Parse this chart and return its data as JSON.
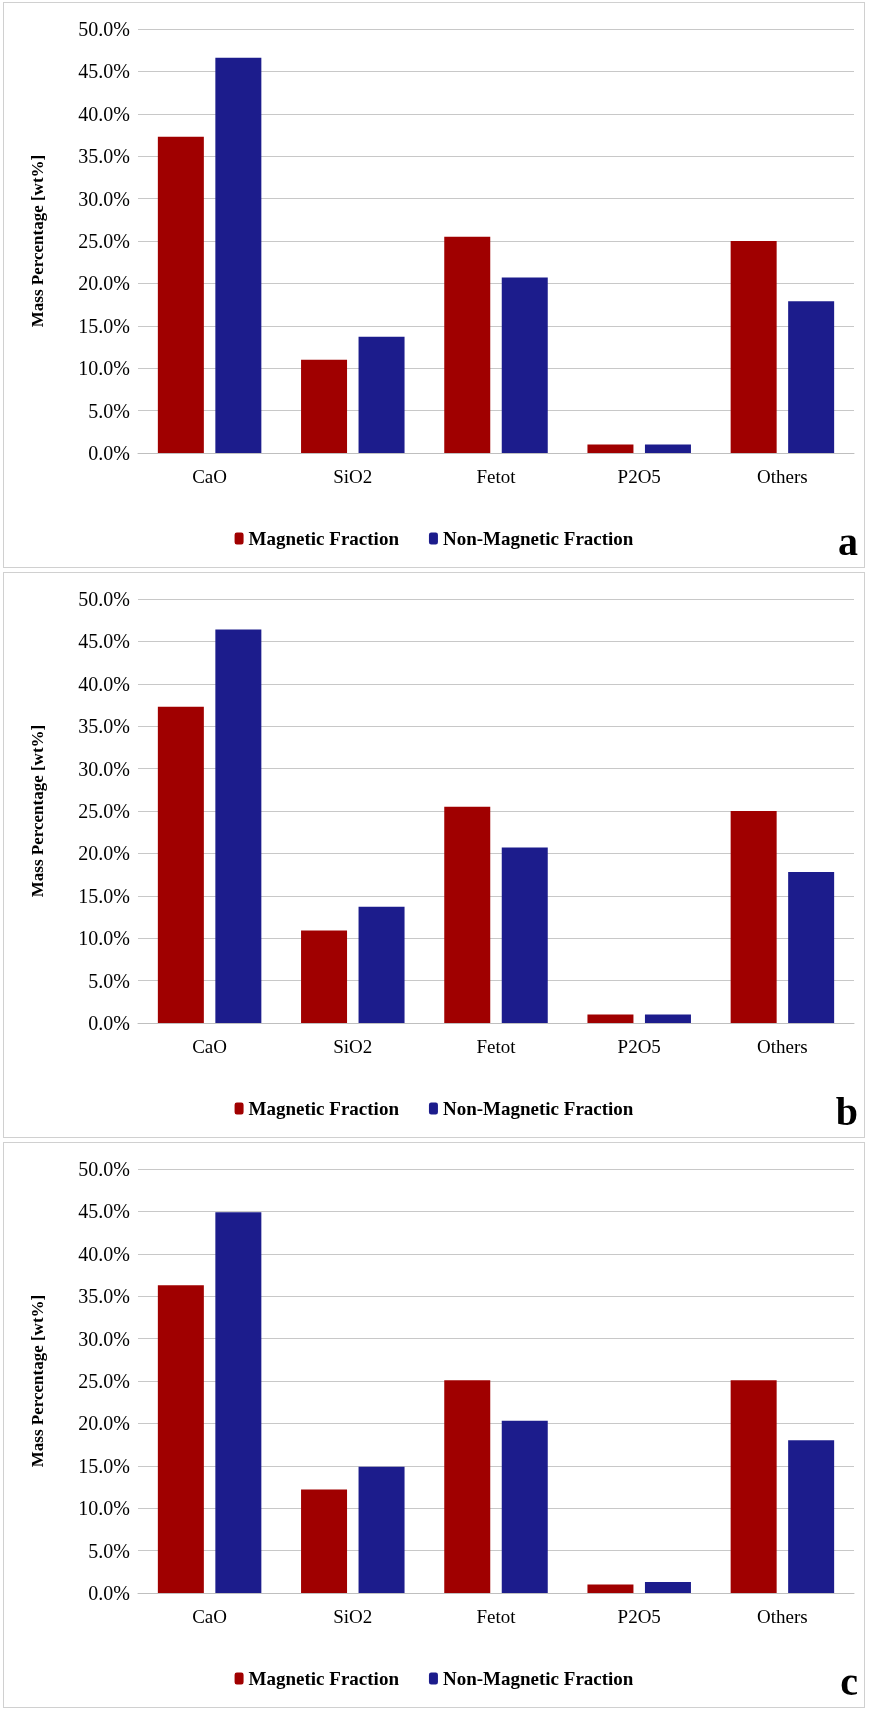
{
  "chart_data": [
    {
      "type": "bar",
      "ylabel": "Mass Percentage [wt%]",
      "categories": [
        "CaO",
        "SiO2",
        "Fetot",
        "P2O5",
        "Others"
      ],
      "series": [
        {
          "name": "Magnetic Fraction",
          "color": "#a00000",
          "values": [
            37.3,
            11.0,
            25.5,
            1.0,
            25.0
          ]
        },
        {
          "name": "Non-Magnetic Fraction",
          "color": "#1c1c8c",
          "values": [
            46.6,
            13.7,
            20.7,
            1.0,
            17.9
          ]
        }
      ],
      "ylim": [
        0,
        50
      ],
      "yticks": [
        {
          "value": 0,
          "label": "0.0%"
        },
        {
          "value": 5,
          "label": "5.0%"
        },
        {
          "value": 10,
          "label": "10.0%"
        },
        {
          "value": 15,
          "label": "15.0%"
        },
        {
          "value": 20,
          "label": "20.0%"
        },
        {
          "value": 25,
          "label": "25.0%"
        },
        {
          "value": 30,
          "label": "30.0%"
        },
        {
          "value": 35,
          "label": "35.0%"
        },
        {
          "value": 40,
          "label": "40.0%"
        },
        {
          "value": 45,
          "label": "45.0%"
        },
        {
          "value": 50,
          "label": "50.0%"
        }
      ],
      "grid": "y",
      "legend": "bottom",
      "annotations": [
        "a"
      ]
    },
    {
      "type": "bar",
      "ylabel": "Mass Percentage [wt%]",
      "categories": [
        "CaO",
        "SiO2",
        "Fetot",
        "P2O5",
        "Others"
      ],
      "series": [
        {
          "name": "Magnetic Fraction",
          "color": "#a00000",
          "values": [
            37.3,
            10.9,
            25.5,
            1.0,
            25.0
          ]
        },
        {
          "name": "Non-Magnetic Fraction",
          "color": "#1c1c8c",
          "values": [
            46.4,
            13.7,
            20.7,
            1.0,
            17.8
          ]
        }
      ],
      "ylim": [
        0,
        50
      ],
      "yticks": [
        {
          "value": 0,
          "label": "0.0%"
        },
        {
          "value": 5,
          "label": "5.0%"
        },
        {
          "value": 10,
          "label": "10.0%"
        },
        {
          "value": 15,
          "label": "15.0%"
        },
        {
          "value": 20,
          "label": "20.0%"
        },
        {
          "value": 25,
          "label": "25.0%"
        },
        {
          "value": 30,
          "label": "30.0%"
        },
        {
          "value": 35,
          "label": "35.0%"
        },
        {
          "value": 40,
          "label": "40.0%"
        },
        {
          "value": 45,
          "label": "45.0%"
        },
        {
          "value": 50,
          "label": "50.0%"
        }
      ],
      "grid": "y",
      "legend": "bottom",
      "annotations": [
        "b"
      ]
    },
    {
      "type": "bar",
      "ylabel": "Mass Percentage [wt%]",
      "categories": [
        "CaO",
        "SiO2",
        "Fetot",
        "P2O5",
        "Others"
      ],
      "series": [
        {
          "name": "Magnetic Fraction",
          "color": "#a00000",
          "values": [
            36.3,
            12.2,
            25.1,
            1.0,
            25.1
          ]
        },
        {
          "name": "Non-Magnetic Fraction",
          "color": "#1c1c8c",
          "values": [
            44.9,
            14.9,
            20.3,
            1.3,
            18.0
          ]
        }
      ],
      "ylim": [
        0,
        50
      ],
      "yticks": [
        {
          "value": 0,
          "label": "0.0%"
        },
        {
          "value": 5,
          "label": "5.0%"
        },
        {
          "value": 10,
          "label": "10.0%"
        },
        {
          "value": 15,
          "label": "15.0%"
        },
        {
          "value": 20,
          "label": "20.0%"
        },
        {
          "value": 25,
          "label": "25.0%"
        },
        {
          "value": 30,
          "label": "30.0%"
        },
        {
          "value": 35,
          "label": "35.0%"
        },
        {
          "value": 40,
          "label": "40.0%"
        },
        {
          "value": 45,
          "label": "45.0%"
        },
        {
          "value": 50,
          "label": "50.0%"
        }
      ],
      "grid": "y",
      "legend": "bottom",
      "annotations": [
        "c"
      ]
    }
  ]
}
